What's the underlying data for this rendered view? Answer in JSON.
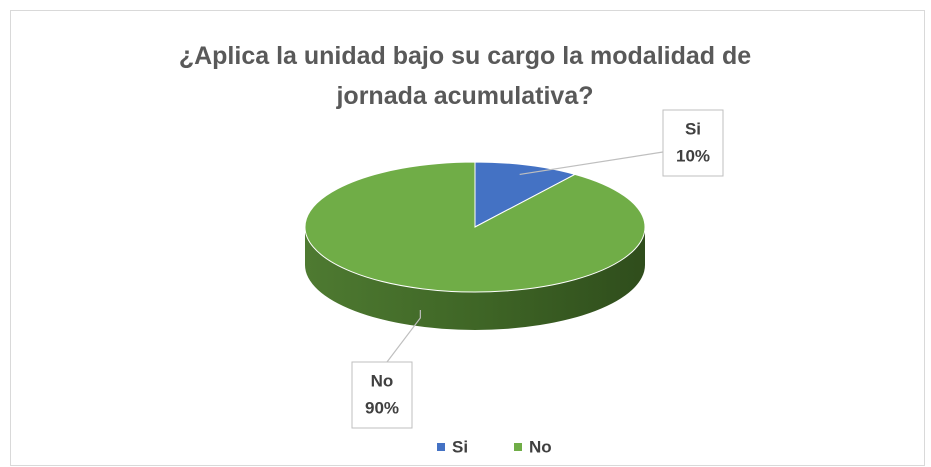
{
  "chart_data": {
    "type": "pie",
    "title": "¿Aplica la unidad bajo su cargo la modalidad de jornada acumulativa?",
    "categories": [
      "Si",
      "No"
    ],
    "values": [
      10,
      90
    ],
    "value_labels": [
      "10%",
      "90%"
    ],
    "colors": [
      "#4472c4",
      "#70ad47"
    ],
    "legend": "bottom"
  }
}
